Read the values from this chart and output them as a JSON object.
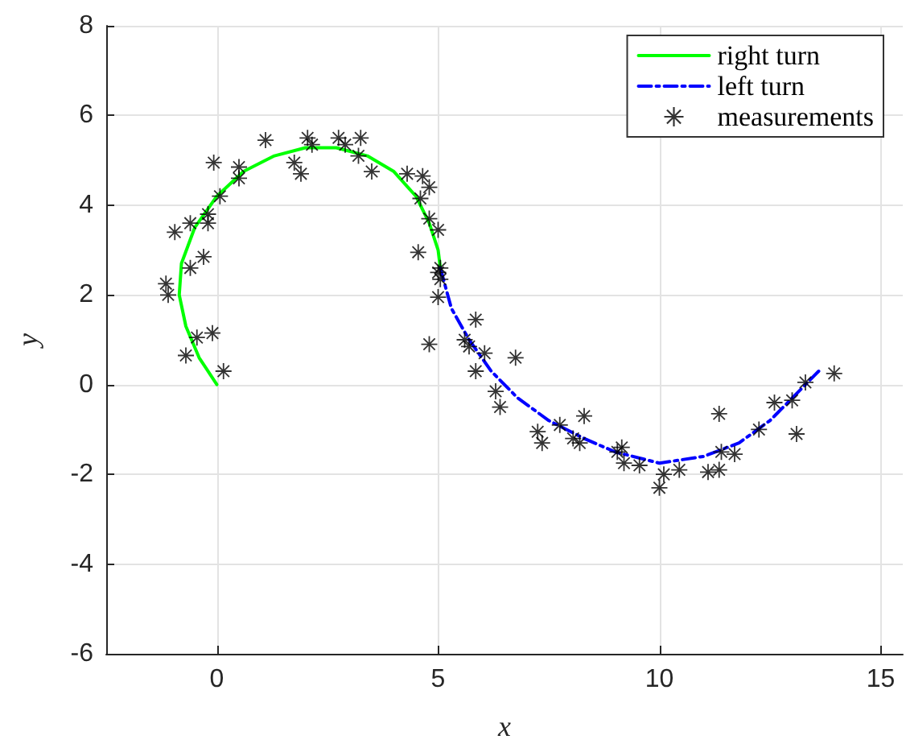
{
  "chart_data": {
    "type": "line",
    "xlabel": "x",
    "ylabel": "y",
    "xlim": [
      -2.5,
      15.5
    ],
    "xticks": [
      0,
      5,
      10,
      15
    ],
    "ylim": [
      -6,
      8
    ],
    "yticks": [
      -6,
      -4,
      -2,
      0,
      2,
      4,
      6,
      8
    ],
    "grid": true,
    "legend": "top right",
    "series": [
      {
        "name": "right turn",
        "color": "#00ff00",
        "line_style": "solid",
        "marker": "none",
        "x": [
          0,
          -0.4,
          -0.7,
          -0.85,
          -0.8,
          -0.5,
          0,
          0.6,
          1.3,
          2.0,
          2.7,
          3.4,
          4.0,
          4.5,
          4.8,
          5.0,
          5.05
        ],
        "values": [
          0,
          0.6,
          1.3,
          2.0,
          2.7,
          3.5,
          4.2,
          4.75,
          5.1,
          5.28,
          5.28,
          5.1,
          4.75,
          4.2,
          3.6,
          3.0,
          2.6
        ]
      },
      {
        "name": "left turn",
        "color": "#0000ff",
        "line_style": "dashed",
        "marker": "none",
        "x": [
          5.05,
          5.3,
          5.7,
          6.2,
          6.8,
          7.5,
          8.3,
          9.0,
          10.0,
          11.0,
          11.8,
          12.5,
          13.1,
          13.6
        ],
        "values": [
          2.6,
          1.7,
          1.0,
          0.3,
          -0.3,
          -0.8,
          -1.2,
          -1.5,
          -1.75,
          -1.6,
          -1.3,
          -0.8,
          -0.2,
          0.3
        ]
      },
      {
        "name": "measurements",
        "type": "scatter",
        "color": "#000000",
        "marker": "star",
        "x": [
          1.1,
          2.05,
          2.15,
          2.75,
          2.9,
          3.25,
          3.2,
          3.5,
          1.75,
          1.9,
          0.5,
          0.5,
          -0.07,
          0.07,
          -0.2,
          -0.2,
          -0.6,
          -0.95,
          -0.3,
          -0.6,
          -1.15,
          -1.1,
          -0.45,
          -0.1,
          -0.7,
          0.15,
          4.3,
          4.65,
          4.8,
          4.6,
          4.8,
          5.0,
          4.55,
          5.05,
          5.05,
          5.0,
          4.8,
          5.0,
          5.85,
          5.6,
          5.7,
          6.05,
          5.85,
          6.75,
          6.3,
          6.4,
          7.25,
          7.35,
          7.75,
          8.3,
          8.05,
          8.2,
          9.05,
          9.15,
          9.2,
          9.55,
          10.0,
          10.1,
          10.45,
          11.1,
          11.35,
          11.4,
          11.7,
          11.35,
          12.25,
          12.6,
          13.0,
          13.1,
          13.3,
          13.95
        ],
        "values": [
          5.45,
          5.5,
          5.35,
          5.5,
          5.35,
          5.5,
          5.1,
          4.75,
          4.95,
          4.7,
          4.85,
          4.6,
          4.95,
          4.2,
          3.8,
          3.6,
          3.6,
          3.4,
          2.85,
          2.6,
          2.25,
          2.0,
          1.05,
          1.15,
          0.65,
          0.3,
          4.7,
          4.65,
          4.4,
          4.15,
          3.7,
          3.45,
          2.95,
          2.6,
          2.35,
          1.95,
          0.9,
          2.5,
          1.45,
          1.0,
          0.85,
          0.7,
          0.3,
          0.6,
          -0.15,
          -0.5,
          -1.05,
          -1.3,
          -0.9,
          -0.7,
          -1.2,
          -1.3,
          -1.5,
          -1.4,
          -1.75,
          -1.8,
          -2.3,
          -2.0,
          -1.9,
          -1.95,
          -1.9,
          -1.5,
          -1.55,
          -0.65,
          -1.0,
          -0.4,
          -0.35,
          -1.1,
          0.05,
          0.25
        ]
      }
    ]
  }
}
